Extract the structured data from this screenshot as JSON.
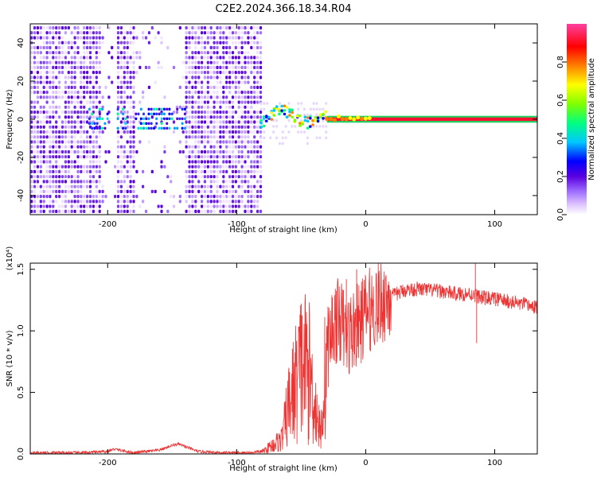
{
  "title": "C2E2.2024.366.18.34.R04",
  "chart_data": [
    {
      "type": "heatmap",
      "xlabel": "Height of straight line (km)",
      "ylabel": "Frequency (Hz)",
      "xlim": [
        -260,
        133
      ],
      "ylim": [
        -50,
        50
      ],
      "x_ticks": [
        -200,
        -100,
        0,
        100
      ],
      "y_ticks": [
        -40,
        -20,
        0,
        20,
        40
      ],
      "colorbar": {
        "label": "Normalized spectral amplitude",
        "range": [
          0,
          1
        ],
        "ticks": [
          0.0,
          0.2,
          0.4,
          0.6,
          0.8
        ],
        "colormap": [
          "#ffffff",
          "#e0c8ff",
          "#a070ff",
          "#5a00e0",
          "#0000ff",
          "#00c8ff",
          "#00ff80",
          "#80ff00",
          "#ffff00",
          "#ff8000",
          "#ff0000",
          "#ff40a0"
        ]
      },
      "regions": [
        {
          "x_range": [
            -260,
            -82
          ],
          "freq_range": [
            -50,
            50
          ],
          "description": "broadband noise (purple, low amplitude)"
        },
        {
          "x_range": [
            -215,
            -140
          ],
          "freq_range": [
            -6,
            10
          ],
          "description": "blue/cyan band near 0 Hz"
        },
        {
          "x_range": [
            -82,
            -30
          ],
          "freq_range": [
            -6,
            10
          ],
          "description": "cyan-green-yellow fluctuating signal"
        },
        {
          "x_range": [
            -30,
            133
          ],
          "freq_range": [
            -1,
            1
          ],
          "description": "strong narrow red line at 0 Hz"
        }
      ]
    },
    {
      "type": "line",
      "xlabel": "Height of straight line (km)",
      "ylabel": "SNR (10 * v/v)",
      "y_scale_note": "(x10⁴)",
      "xlim": [
        -260,
        133
      ],
      "ylim": [
        0,
        1.55
      ],
      "x_ticks": [
        -200,
        -100,
        0,
        100
      ],
      "y_ticks": [
        0.0,
        0.5,
        1.0,
        1.5
      ],
      "color": "#ee3333",
      "series": [
        {
          "x": [
            -260,
            -220,
            -200,
            -195,
            -180,
            -170,
            -160,
            -150,
            -145,
            -140,
            -130,
            -110,
            -100,
            -90,
            -80,
            -65,
            -60,
            -55,
            -50,
            -45,
            -40,
            -35,
            -30,
            -25,
            -20,
            -15,
            -10,
            -5,
            0,
            10,
            20,
            30,
            40,
            50,
            60,
            70,
            80,
            85,
            90,
            100,
            110,
            120,
            133
          ],
          "y": [
            0.01,
            0.01,
            0.02,
            0.04,
            0.01,
            0.02,
            0.03,
            0.07,
            0.08,
            0.06,
            0.02,
            0.01,
            0.01,
            0.01,
            0.02,
            0.12,
            0.38,
            0.55,
            0.7,
            0.72,
            0.45,
            0.15,
            0.85,
            1.05,
            1.1,
            0.95,
            1.0,
            1.05,
            1.15,
            1.22,
            1.28,
            1.33,
            1.34,
            1.33,
            1.32,
            1.3,
            1.3,
            1.29,
            1.27,
            1.26,
            1.24,
            1.22,
            1.19
          ]
        }
      ],
      "spikes": [
        {
          "x": -50,
          "y": 1.22
        },
        {
          "x": -15,
          "y": 1.42
        },
        {
          "x": -7,
          "y": 1.5
        },
        {
          "x": 85,
          "y": 1.55
        },
        {
          "x": 86,
          "y": 0.9
        }
      ]
    }
  ]
}
